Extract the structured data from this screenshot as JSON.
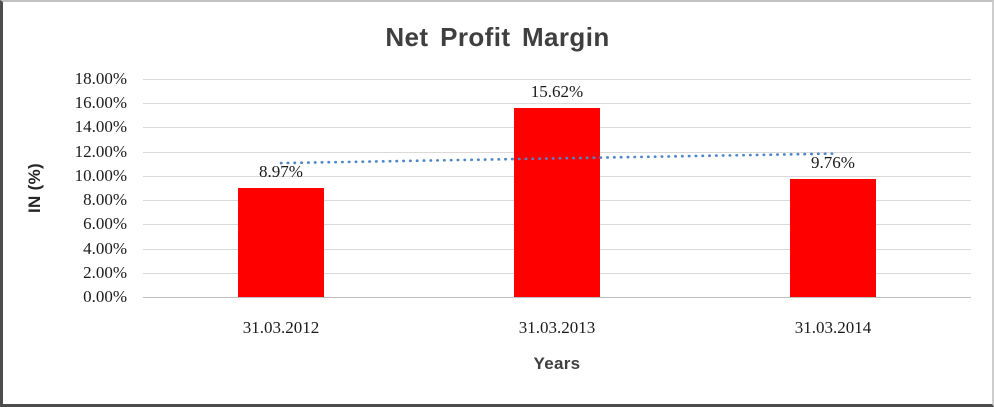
{
  "chart_data": {
    "type": "bar",
    "title": "Net Profit Margin",
    "xlabel": "Years",
    "ylabel": "IN (%)",
    "categories": [
      "31.03.2012",
      "31.03.2013",
      "31.03.2014"
    ],
    "values": [
      8.97,
      15.62,
      9.76
    ],
    "data_labels": [
      "8.97%",
      "15.62%",
      "9.76%"
    ],
    "ylim": [
      0,
      18
    ],
    "ytick_step": 2,
    "ytick_labels_top_to_bottom": [
      "18.00%",
      "16.00%",
      "14.00%",
      "12.00%",
      "10.00%",
      "8.00%",
      "6.00%",
      "4.00%",
      "2.00%",
      "0.00%"
    ],
    "grid": true,
    "legend": "none",
    "bar_color": "#FF0000",
    "grid_color": "#D9D9D9",
    "axis_line_color": "#BFBFBF",
    "title_color": "#3F3F3F",
    "trendline": {
      "type": "linear",
      "style": "dotted",
      "color": "#4E86C8",
      "start_value": 11.06,
      "end_value": 11.84
    }
  }
}
